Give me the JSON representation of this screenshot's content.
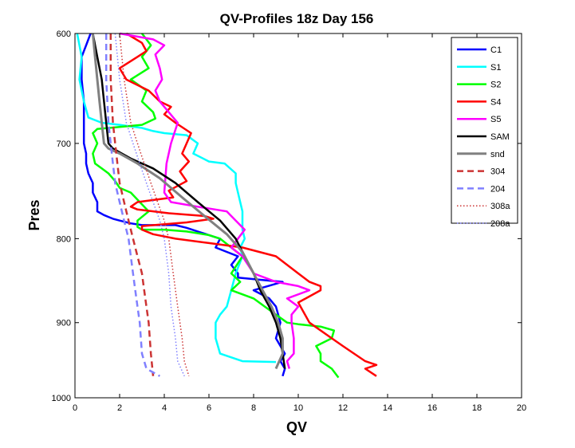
{
  "chart_data": {
    "type": "line",
    "title": "QV-Profiles 18z Day 156",
    "xlabel": "QV",
    "ylabel": "Pres",
    "xlim": [
      0,
      20
    ],
    "ylim": [
      600,
      1000
    ],
    "y_reversed": true,
    "y_scale": "log",
    "x_ticks": [
      0,
      2,
      4,
      6,
      8,
      10,
      12,
      14,
      16,
      18,
      20
    ],
    "y_ticks": [
      600,
      700,
      800,
      900,
      1000
    ],
    "grid": false,
    "legend_position": "top-right",
    "series": [
      {
        "name": "C1",
        "color": "#0000ff",
        "style": "solid",
        "width": 2.5,
        "x": [
          0.7,
          0.5,
          0.3,
          0.3,
          0.4,
          0.4,
          0.4,
          0.4,
          0.5,
          0.5,
          0.6,
          0.8,
          0.8,
          1.0,
          1.0,
          1.3,
          1.5,
          1.7,
          2.0,
          2.5,
          3.0,
          3.8,
          4.5,
          5.0,
          5.5,
          6.0,
          6.5,
          6.3,
          6.8,
          7.3,
          7.0,
          7.3,
          7.3,
          8.5,
          9.3,
          8.0,
          8.7,
          9.0,
          9.2,
          9.0,
          9.4,
          9.2,
          9.4,
          9.3
        ],
        "y": [
          600,
          610,
          620,
          640,
          660,
          680,
          690,
          700,
          710,
          720,
          730,
          740,
          750,
          760,
          770,
          774,
          776,
          778,
          780,
          783,
          785,
          785,
          785,
          788,
          792,
          796,
          800,
          810,
          815,
          820,
          830,
          840,
          845,
          848,
          850,
          860,
          870,
          880,
          900,
          920,
          940,
          950,
          960,
          970
        ]
      },
      {
        "name": "S1",
        "color": "#00ffff",
        "style": "solid",
        "width": 2.5,
        "x": [
          0.1,
          0.2,
          0.3,
          0.2,
          0.4,
          0.6,
          1.2,
          2.0,
          3.0,
          3.5,
          4.0,
          5.0,
          5.5,
          5.3,
          6.0,
          6.7,
          7.2,
          7.2,
          7.3,
          7.4,
          7.5,
          7.5,
          7.5,
          7.6,
          7.4,
          7.5,
          7.2,
          7.0,
          6.8,
          6.5,
          6.3,
          6.3,
          6.5,
          7.5,
          9.0
        ],
        "y": [
          600,
          610,
          620,
          640,
          660,
          675,
          680,
          682,
          685,
          688,
          690,
          692,
          700,
          710,
          718,
          720,
          730,
          740,
          750,
          760,
          770,
          780,
          790,
          800,
          810,
          820,
          840,
          860,
          880,
          890,
          900,
          920,
          940,
          950,
          951
        ]
      },
      {
        "name": "S2",
        "color": "#00ff00",
        "style": "solid",
        "width": 2.5,
        "x": [
          3.0,
          3.4,
          3.0,
          3.3,
          2.5,
          3.2,
          3.0,
          3.5,
          3.6,
          3.0,
          2.0,
          1.0,
          0.8,
          1.0,
          0.8,
          0.9,
          1.5,
          1.8,
          2.0,
          2.5,
          3.3,
          2.8,
          2.8,
          3.0,
          4.0,
          5.0,
          6.0,
          6.5,
          7.0,
          7.5,
          7.0,
          7.4,
          7.0,
          8.0,
          8.5,
          9.0,
          9.5,
          10.0,
          11.0,
          11.6,
          11.5,
          10.8,
          11.0,
          11.0,
          11.5,
          11.8
        ],
        "y": [
          600,
          610,
          620,
          630,
          640,
          650,
          660,
          670,
          676,
          682,
          684,
          686,
          690,
          700,
          710,
          720,
          730,
          738,
          745,
          750,
          770,
          780,
          787,
          790,
          790,
          792,
          796,
          800,
          810,
          820,
          840,
          850,
          860,
          870,
          880,
          890,
          900,
          902,
          905,
          910,
          920,
          930,
          940,
          950,
          960,
          972
        ]
      },
      {
        "name": "S4",
        "color": "#ff0000",
        "style": "solid",
        "width": 2.5,
        "x": [
          2.3,
          3.0,
          3.2,
          2.8,
          2.0,
          2.3,
          3.3,
          3.8,
          4.3,
          4.0,
          4.5,
          5.2,
          5.0,
          4.8,
          5.1,
          4.7,
          5.0,
          4.2,
          4.4,
          2.8,
          2.5,
          2.8,
          4.2,
          5.8,
          6.2,
          5.0,
          3.0,
          3.0,
          3.5,
          4.5,
          6.0,
          7.5,
          9.0,
          9.5,
          10.0,
          10.5,
          11.0,
          11.0,
          10.0,
          10.5,
          11.5,
          12.0,
          12.5,
          13.0,
          13.5,
          13.0,
          13.5
        ],
        "y": [
          600,
          608,
          615,
          620,
          630,
          640,
          650,
          660,
          665,
          672,
          680,
          690,
          700,
          710,
          718,
          728,
          738,
          748,
          755,
          760,
          765,
          768,
          772,
          775,
          778,
          782,
          786,
          790,
          795,
          800,
          805,
          810,
          820,
          830,
          840,
          850,
          855,
          860,
          875,
          900,
          920,
          930,
          940,
          950,
          955,
          960,
          970
        ]
      },
      {
        "name": "S5",
        "color": "#ff00ff",
        "style": "solid",
        "width": 2.5,
        "x": [
          2.0,
          3.5,
          4.0,
          3.6,
          3.8,
          3.9,
          3.6,
          3.8,
          4.2,
          4.6,
          4.3,
          4.1,
          4.0,
          4.3,
          5.5,
          6.8,
          7.2,
          7.6,
          7.3,
          7.0,
          7.5,
          8.0,
          9.0,
          10.0,
          10.5,
          9.5,
          10.0,
          9.7,
          9.7,
          9.8,
          9.8,
          9.5,
          9.6
        ],
        "y": [
          600,
          605,
          610,
          618,
          630,
          640,
          650,
          660,
          670,
          680,
          700,
          720,
          750,
          760,
          765,
          770,
          780,
          790,
          800,
          810,
          820,
          840,
          850,
          855,
          860,
          870,
          880,
          890,
          900,
          920,
          940,
          950,
          960
        ]
      },
      {
        "name": "SAM",
        "color": "#000000",
        "style": "solid",
        "width": 2.5,
        "x": [
          0.8,
          1.0,
          1.2,
          1.3,
          1.4,
          1.5,
          1.7,
          2.5,
          3.5,
          4.5,
          5.5,
          6.5,
          7.2,
          7.6,
          8.0,
          8.3,
          8.7,
          9.0,
          9.2,
          9.3,
          9.4
        ],
        "y": [
          600,
          620,
          640,
          660,
          680,
          700,
          705,
          715,
          725,
          740,
          760,
          780,
          800,
          820,
          840,
          860,
          880,
          900,
          920,
          940,
          960
        ]
      },
      {
        "name": "snd",
        "color": "#808080",
        "style": "solid",
        "width": 3,
        "x": [
          0.8,
          0.9,
          1.0,
          1.1,
          1.2,
          1.3,
          1.5,
          2.0,
          2.8,
          3.8,
          4.8,
          5.8,
          6.8,
          7.5,
          8.0,
          8.4,
          8.8,
          9.1,
          9.3,
          9.3,
          9.0
        ],
        "y": [
          600,
          620,
          640,
          660,
          680,
          700,
          705,
          710,
          720,
          735,
          755,
          775,
          795,
          815,
          840,
          860,
          880,
          900,
          920,
          940,
          960
        ]
      },
      {
        "name": "304",
        "color": "#cc3333",
        "style": "dashed",
        "width": 2.5,
        "x": [
          1.6,
          1.6,
          1.7,
          1.8,
          1.9,
          2.0,
          2.2,
          2.4,
          2.6,
          2.8,
          3.0,
          3.1,
          3.2,
          3.3,
          3.4,
          3.5
        ],
        "y": [
          600,
          640,
          680,
          700,
          720,
          740,
          760,
          780,
          800,
          820,
          840,
          860,
          880,
          900,
          940,
          970
        ]
      },
      {
        "name": "204",
        "color": "#8080ff",
        "style": "dashed",
        "width": 2.5,
        "x": [
          1.4,
          1.4,
          1.5,
          1.6,
          1.7,
          1.8,
          2.0,
          2.2,
          2.4,
          2.5,
          2.6,
          2.7,
          2.8,
          2.9,
          3.0,
          3.2,
          3.8
        ],
        "y": [
          600,
          640,
          680,
          700,
          720,
          740,
          760,
          780,
          800,
          820,
          840,
          860,
          880,
          900,
          940,
          960,
          970
        ]
      },
      {
        "name": "308a",
        "color": "#cc3333",
        "style": "dotted",
        "width": 1.5,
        "x": [
          2.0,
          2.2,
          2.5,
          2.8,
          3.1,
          3.4,
          3.7,
          4.0,
          4.2,
          4.4,
          4.6,
          4.8,
          4.9,
          5.1
        ],
        "y": [
          600,
          640,
          680,
          700,
          720,
          740,
          760,
          780,
          800,
          840,
          880,
          920,
          950,
          970
        ]
      },
      {
        "name": "208a",
        "color": "#8080ff",
        "style": "dotted",
        "width": 1.5,
        "x": [
          1.8,
          2.0,
          2.3,
          2.6,
          2.9,
          3.2,
          3.5,
          3.8,
          4.0,
          4.2,
          4.3,
          4.5,
          4.6,
          4.9
        ],
        "y": [
          600,
          640,
          680,
          700,
          720,
          740,
          760,
          780,
          800,
          840,
          880,
          920,
          950,
          970
        ]
      }
    ]
  }
}
